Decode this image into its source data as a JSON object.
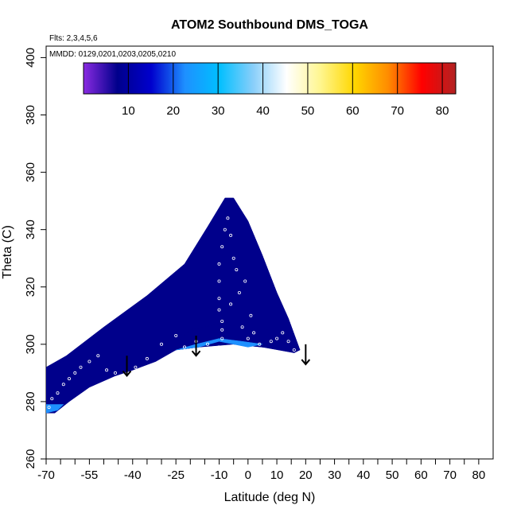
{
  "chart_data": {
    "type": "heatmap",
    "title": "ATOM2 Southbound DMS_TOGA",
    "subtitle_flights": "Flts: 2,3,4,5,6",
    "subtitle_dates": "MMDD: 0129,0201,0203,0205,0210",
    "xlabel": "Latitude (deg N)",
    "ylabel": "Theta (C)",
    "xlim": [
      -70,
      85
    ],
    "ylim": [
      260,
      404
    ],
    "x_ticks_labeled": [
      -70,
      -55,
      -40,
      -25,
      -10,
      0,
      10,
      20,
      30,
      40,
      50,
      60,
      70,
      80
    ],
    "x_ticks_minor": [
      -65,
      -60,
      -50,
      -45,
      -35,
      -30,
      -20,
      -15,
      -5,
      5,
      15,
      25,
      35,
      45,
      55,
      65,
      75
    ],
    "y_ticks": [
      260,
      280,
      300,
      320,
      340,
      360,
      380,
      400
    ],
    "colorbar": {
      "min": 0,
      "max": 83,
      "ticks": [
        10,
        20,
        30,
        40,
        50,
        60,
        70,
        80
      ],
      "colors": [
        "#8a2be2",
        "#00008b",
        "#0000cd",
        "#1e90ff",
        "#00bfff",
        "#87cefa",
        "#ffffff",
        "#fff68f",
        "#ffd700",
        "#ff8c00",
        "#ff0000",
        "#b22222"
      ]
    },
    "field_outline": [
      [
        -70,
        276
      ],
      [
        -70,
        292
      ],
      [
        -63,
        296
      ],
      [
        -50,
        306
      ],
      [
        -35,
        317
      ],
      [
        -22,
        328
      ],
      [
        -14,
        341
      ],
      [
        -8,
        351
      ],
      [
        -5,
        351
      ],
      [
        0,
        343
      ],
      [
        5,
        331
      ],
      [
        10,
        318
      ],
      [
        14,
        309
      ],
      [
        18,
        298
      ],
      [
        16,
        297
      ],
      [
        5,
        299
      ],
      [
        -5,
        300
      ],
      [
        -10,
        301
      ],
      [
        -17,
        299
      ],
      [
        -25,
        298
      ],
      [
        -32,
        294
      ],
      [
        -40,
        291
      ],
      [
        -46,
        289
      ],
      [
        -55,
        285
      ],
      [
        -62,
        280
      ],
      [
        -67,
        276
      ]
    ],
    "field_regions": [
      {
        "value": 5,
        "points": [
          [
            -70,
            276
          ],
          [
            -70,
            292
          ],
          [
            -63,
            296
          ],
          [
            -50,
            306
          ],
          [
            -35,
            317
          ],
          [
            -22,
            328
          ],
          [
            -14,
            341
          ],
          [
            -8,
            351
          ],
          [
            -5,
            351
          ],
          [
            0,
            343
          ],
          [
            5,
            331
          ],
          [
            10,
            318
          ],
          [
            14,
            309
          ],
          [
            18,
            298
          ],
          [
            16,
            297
          ],
          [
            5,
            299
          ],
          [
            -5,
            300
          ],
          [
            -10,
            301
          ],
          [
            -17,
            299
          ],
          [
            -25,
            298
          ],
          [
            -32,
            294
          ],
          [
            -40,
            291
          ],
          [
            -46,
            289
          ],
          [
            -55,
            285
          ],
          [
            -62,
            280
          ],
          [
            -67,
            276
          ]
        ]
      },
      {
        "value": 9,
        "points": [
          [
            -8,
            351
          ],
          [
            -5,
            351
          ],
          [
            0,
            343
          ],
          [
            5,
            331
          ],
          [
            10,
            318
          ],
          [
            14,
            309
          ],
          [
            18,
            298
          ],
          [
            5,
            299
          ],
          [
            -8,
            302
          ],
          [
            -10,
            320
          ],
          [
            -8,
            340
          ]
        ]
      },
      {
        "value": 9,
        "points": [
          [
            -70,
            278
          ],
          [
            -70,
            292
          ],
          [
            -64,
            294
          ],
          [
            -56,
            290
          ],
          [
            -52,
            287
          ],
          [
            -60,
            282
          ],
          [
            -66,
            278
          ]
        ]
      },
      {
        "value": 9,
        "points": [
          [
            -30,
            296
          ],
          [
            -20,
            305
          ],
          [
            -10,
            307
          ],
          [
            0,
            306
          ],
          [
            8,
            305
          ],
          [
            15,
            301
          ],
          [
            17,
            298
          ],
          [
            5,
            299
          ],
          [
            -5,
            300
          ],
          [
            -17,
            299
          ],
          [
            -25,
            298
          ]
        ]
      },
      {
        "value": 9,
        "points": [
          [
            -50,
            291
          ],
          [
            -45,
            293
          ],
          [
            -40,
            292
          ],
          [
            -35,
            293
          ],
          [
            -40,
            291
          ],
          [
            -46,
            289
          ]
        ]
      },
      {
        "value": 25,
        "points": [
          [
            -25,
            298
          ],
          [
            -18,
            300
          ],
          [
            -10,
            302
          ],
          [
            -2,
            301
          ],
          [
            5,
            300
          ],
          [
            0,
            299
          ],
          [
            -5,
            300
          ],
          [
            -10,
            301
          ],
          [
            -17,
            299
          ]
        ]
      },
      {
        "value": 26,
        "points": [
          [
            -70,
            276
          ],
          [
            -70,
            279
          ],
          [
            -64,
            279
          ],
          [
            -66,
            277
          ]
        ]
      }
    ],
    "arrows": [
      {
        "lat": -42,
        "theta_top": 296,
        "theta_bottom": 289
      },
      {
        "lat": -18,
        "theta_top": 303,
        "theta_bottom": 296
      },
      {
        "lat": 20,
        "theta_top": 300,
        "theta_bottom": 293
      }
    ],
    "sample_points": [
      [
        -69,
        278
      ],
      [
        -68,
        281
      ],
      [
        -66,
        283
      ],
      [
        -64,
        286
      ],
      [
        -62,
        288
      ],
      [
        -60,
        290
      ],
      [
        -58,
        292
      ],
      [
        -55,
        294
      ],
      [
        -52,
        296
      ],
      [
        -49,
        291
      ],
      [
        -46,
        290
      ],
      [
        -43,
        289
      ],
      [
        -39,
        292
      ],
      [
        -35,
        295
      ],
      [
        -30,
        300
      ],
      [
        -25,
        303
      ],
      [
        -22,
        299
      ],
      [
        -18,
        301
      ],
      [
        -14,
        300
      ],
      [
        -10,
        299
      ],
      [
        -9,
        302
      ],
      [
        -9,
        305
      ],
      [
        -9,
        308
      ],
      [
        -10,
        312
      ],
      [
        -10,
        316
      ],
      [
        -10,
        322
      ],
      [
        -10,
        328
      ],
      [
        -9,
        334
      ],
      [
        -8,
        340
      ],
      [
        -7,
        344
      ],
      [
        -6,
        338
      ],
      [
        -5,
        330
      ],
      [
        -4,
        326
      ],
      [
        0,
        302
      ],
      [
        2,
        304
      ],
      [
        4,
        300
      ],
      [
        6,
        298
      ],
      [
        8,
        301
      ],
      [
        10,
        302
      ],
      [
        12,
        304
      ],
      [
        14,
        301
      ],
      [
        16,
        298
      ],
      [
        -2,
        306
      ],
      [
        -6,
        314
      ],
      [
        -3,
        318
      ],
      [
        -1,
        322
      ],
      [
        1,
        310
      ]
    ]
  }
}
